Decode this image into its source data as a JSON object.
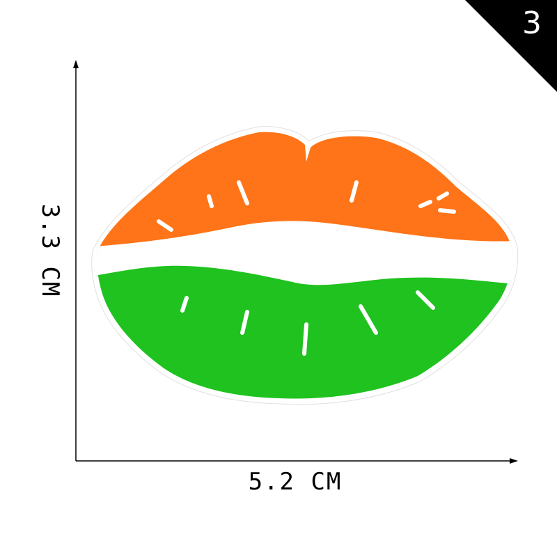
{
  "badge": {
    "number": "3",
    "color": "#000000"
  },
  "dimensions": {
    "height_label": "3.3 CM",
    "width_label": "5.2 CM"
  },
  "patch": {
    "icon": "lips-patch",
    "colors": {
      "top": "#ff7418",
      "middle": "#ffffff",
      "bottom": "#1fc21f"
    }
  }
}
